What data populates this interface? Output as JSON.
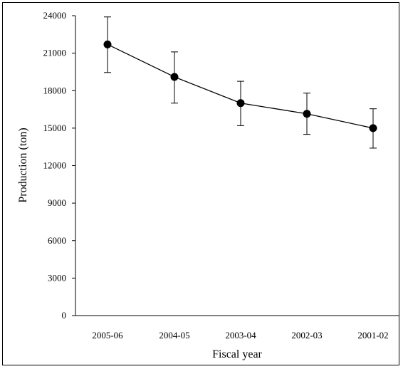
{
  "chart_data": {
    "type": "line",
    "xlabel": "Fiscal year",
    "ylabel": "Production (ton)",
    "categories": [
      "2005-06",
      "2004-05",
      "2003-04",
      "2002-03",
      "2001-02"
    ],
    "series": [
      {
        "values": [
          21700,
          19100,
          17000,
          16150,
          15000
        ],
        "error_low": [
          19450,
          17000,
          15200,
          14500,
          13400
        ],
        "error_high": [
          23900,
          21100,
          18750,
          17800,
          16550
        ]
      }
    ],
    "yticks": [
      "0",
      "3000",
      "6000",
      "9000",
      "12000",
      "15000",
      "18000",
      "21000",
      "24000"
    ],
    "ylim": [
      0,
      24000
    ],
    "grid": false,
    "line_color": "#000000",
    "marker_color": "#000000"
  }
}
